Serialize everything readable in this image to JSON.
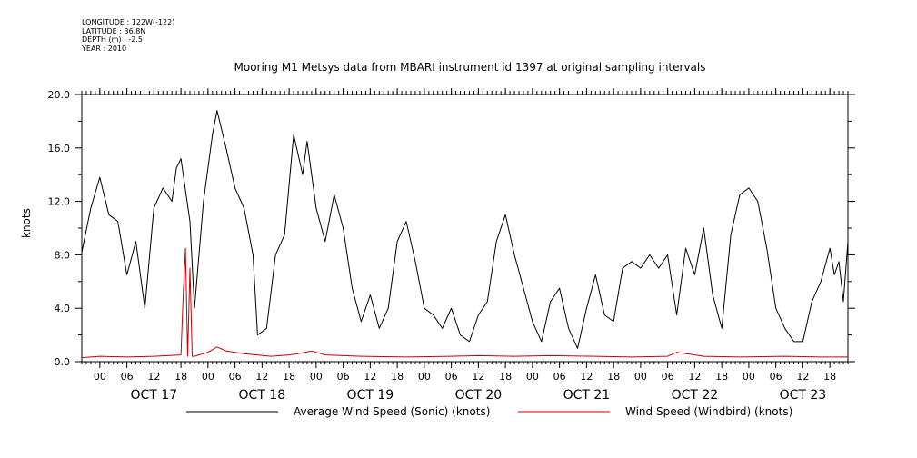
{
  "metadata": {
    "longitude": "LONGITUDE : 122W(-122)",
    "latitude": "LATITUDE : 36.8N",
    "depth": "DEPTH (m) : -2.5",
    "year": "YEAR : 2010"
  },
  "colors": {
    "sonic": "#000000",
    "windbird": "#cc0000"
  },
  "chart_data": {
    "type": "line",
    "title": "Mooring M1 Metsys data from MBARI instrument id 1397 at original sampling intervals",
    "xlabel": "",
    "ylabel": "knots",
    "ylim": [
      0,
      20
    ],
    "xlim": [
      "2010-10-16T20:00",
      "2010-10-23T22:00"
    ],
    "y_ticks": [
      "0.0",
      "4.0",
      "8.0",
      "12.0",
      "16.0",
      "20.0"
    ],
    "x_hour_ticks": [
      "00",
      "06",
      "12",
      "18",
      "00",
      "06",
      "12",
      "18",
      "00",
      "06",
      "12",
      "18",
      "00",
      "06",
      "12",
      "18",
      "00",
      "06",
      "12",
      "18",
      "00",
      "06",
      "12",
      "18",
      "00",
      "06",
      "12",
      "18"
    ],
    "x_day_labels": [
      "OCT 17",
      "OCT 18",
      "OCT 19",
      "OCT 20",
      "OCT 21",
      "OCT 22",
      "OCT 23"
    ],
    "grid": false,
    "legend_position": "bottom",
    "series": [
      {
        "name": "Average Wind Speed (Sonic) (knots)",
        "color": "#000000",
        "x": [
          "2010-10-16T20:00",
          "2010-10-16T22:00",
          "2010-10-17T00:00",
          "2010-10-17T02:00",
          "2010-10-17T04:00",
          "2010-10-17T06:00",
          "2010-10-17T08:00",
          "2010-10-17T10:00",
          "2010-10-17T12:00",
          "2010-10-17T14:00",
          "2010-10-17T16:00",
          "2010-10-17T17:00",
          "2010-10-17T18:00",
          "2010-10-17T20:00",
          "2010-10-17T21:00",
          "2010-10-17T23:00",
          "2010-10-18T01:00",
          "2010-10-18T02:00",
          "2010-10-18T04:00",
          "2010-10-18T06:00",
          "2010-10-18T08:00",
          "2010-10-18T10:00",
          "2010-10-18T11:00",
          "2010-10-18T13:00",
          "2010-10-18T15:00",
          "2010-10-18T17:00",
          "2010-10-18T19:00",
          "2010-10-18T21:00",
          "2010-10-18T22:00",
          "2010-10-19T00:00",
          "2010-10-19T02:00",
          "2010-10-19T04:00",
          "2010-10-19T06:00",
          "2010-10-19T08:00",
          "2010-10-19T10:00",
          "2010-10-19T12:00",
          "2010-10-19T14:00",
          "2010-10-19T16:00",
          "2010-10-19T18:00",
          "2010-10-19T20:00",
          "2010-10-19T22:00",
          "2010-10-20T00:00",
          "2010-10-20T02:00",
          "2010-10-20T04:00",
          "2010-10-20T06:00",
          "2010-10-20T08:00",
          "2010-10-20T10:00",
          "2010-10-20T12:00",
          "2010-10-20T14:00",
          "2010-10-20T16:00",
          "2010-10-20T18:00",
          "2010-10-20T20:00",
          "2010-10-20T22:00",
          "2010-10-21T00:00",
          "2010-10-21T02:00",
          "2010-10-21T04:00",
          "2010-10-21T06:00",
          "2010-10-21T08:00",
          "2010-10-21T10:00",
          "2010-10-21T12:00",
          "2010-10-21T14:00",
          "2010-10-21T16:00",
          "2010-10-21T18:00",
          "2010-10-21T20:00",
          "2010-10-21T22:00",
          "2010-10-22T00:00",
          "2010-10-22T02:00",
          "2010-10-22T04:00",
          "2010-10-22T06:00",
          "2010-10-22T08:00",
          "2010-10-22T10:00",
          "2010-10-22T12:00",
          "2010-10-22T14:00",
          "2010-10-22T16:00",
          "2010-10-22T18:00",
          "2010-10-22T20:00",
          "2010-10-22T22:00",
          "2010-10-23T00:00",
          "2010-10-23T02:00",
          "2010-10-23T04:00",
          "2010-10-23T06:00",
          "2010-10-23T08:00",
          "2010-10-23T10:00",
          "2010-10-23T12:00",
          "2010-10-23T14:00",
          "2010-10-23T16:00",
          "2010-10-23T18:00",
          "2010-10-23T19:00",
          "2010-10-23T20:00",
          "2010-10-23T21:00",
          "2010-10-23T22:00"
        ],
        "values": [
          8.2,
          11.5,
          13.8,
          11.0,
          10.5,
          6.5,
          9.0,
          4.0,
          11.5,
          13.0,
          12.0,
          14.5,
          15.2,
          10.5,
          4.0,
          12.0,
          17.0,
          18.8,
          16.0,
          13.0,
          11.5,
          8.0,
          2.0,
          2.5,
          8.0,
          9.5,
          17.0,
          14.0,
          16.5,
          11.5,
          9.0,
          12.5,
          10.0,
          5.5,
          3.0,
          5.0,
          2.5,
          4.0,
          9.0,
          10.5,
          7.5,
          4.0,
          3.5,
          2.5,
          4.0,
          2.0,
          1.5,
          3.5,
          4.5,
          9.0,
          11.0,
          8.0,
          5.5,
          3.0,
          1.5,
          4.5,
          5.5,
          2.5,
          1.0,
          4.0,
          6.5,
          3.5,
          3.0,
          7.0,
          7.5,
          7.0,
          8.0,
          7.0,
          8.0,
          3.5,
          8.5,
          6.5,
          10.0,
          5.0,
          2.5,
          9.5,
          12.5,
          13.0,
          12.0,
          8.5,
          4.0,
          2.5,
          1.5,
          1.5,
          4.5,
          6.0,
          8.5,
          6.5,
          7.5,
          4.5,
          9.0
        ]
      },
      {
        "name": "Wind Speed (Windbird) (knots)",
        "color": "#cc0000",
        "x": [
          "2010-10-16T20:00",
          "2010-10-17T00:00",
          "2010-10-17T06:00",
          "2010-10-17T12:00",
          "2010-10-17T18:00",
          "2010-10-17T18:30",
          "2010-10-17T19:00",
          "2010-10-17T19:30",
          "2010-10-17T20:00",
          "2010-10-17T20:30",
          "2010-10-17T21:00",
          "2010-10-18T00:00",
          "2010-10-18T02:00",
          "2010-10-18T04:00",
          "2010-10-18T08:00",
          "2010-10-18T14:00",
          "2010-10-18T18:00",
          "2010-10-18T20:00",
          "2010-10-18T23:00",
          "2010-10-19T02:00",
          "2010-10-19T10:00",
          "2010-10-19T20:00",
          "2010-10-20T06:00",
          "2010-10-20T12:00",
          "2010-10-20T20:00",
          "2010-10-21T04:00",
          "2010-10-21T14:00",
          "2010-10-21T22:00",
          "2010-10-22T06:00",
          "2010-10-22T08:00",
          "2010-10-22T14:00",
          "2010-10-22T22:00",
          "2010-10-23T08:00",
          "2010-10-23T16:00",
          "2010-10-23T22:00"
        ],
        "values": [
          0.3,
          0.4,
          0.35,
          0.4,
          0.5,
          5.0,
          8.5,
          0.4,
          7.0,
          0.4,
          0.4,
          0.7,
          1.1,
          0.8,
          0.6,
          0.4,
          0.5,
          0.6,
          0.8,
          0.5,
          0.4,
          0.35,
          0.4,
          0.45,
          0.4,
          0.45,
          0.4,
          0.35,
          0.4,
          0.7,
          0.4,
          0.35,
          0.4,
          0.35,
          0.35
        ]
      }
    ]
  },
  "legend": {
    "sonic_label": "Average Wind Speed (Sonic) (knots)",
    "windbird_label": "Wind Speed (Windbird) (knots)"
  }
}
